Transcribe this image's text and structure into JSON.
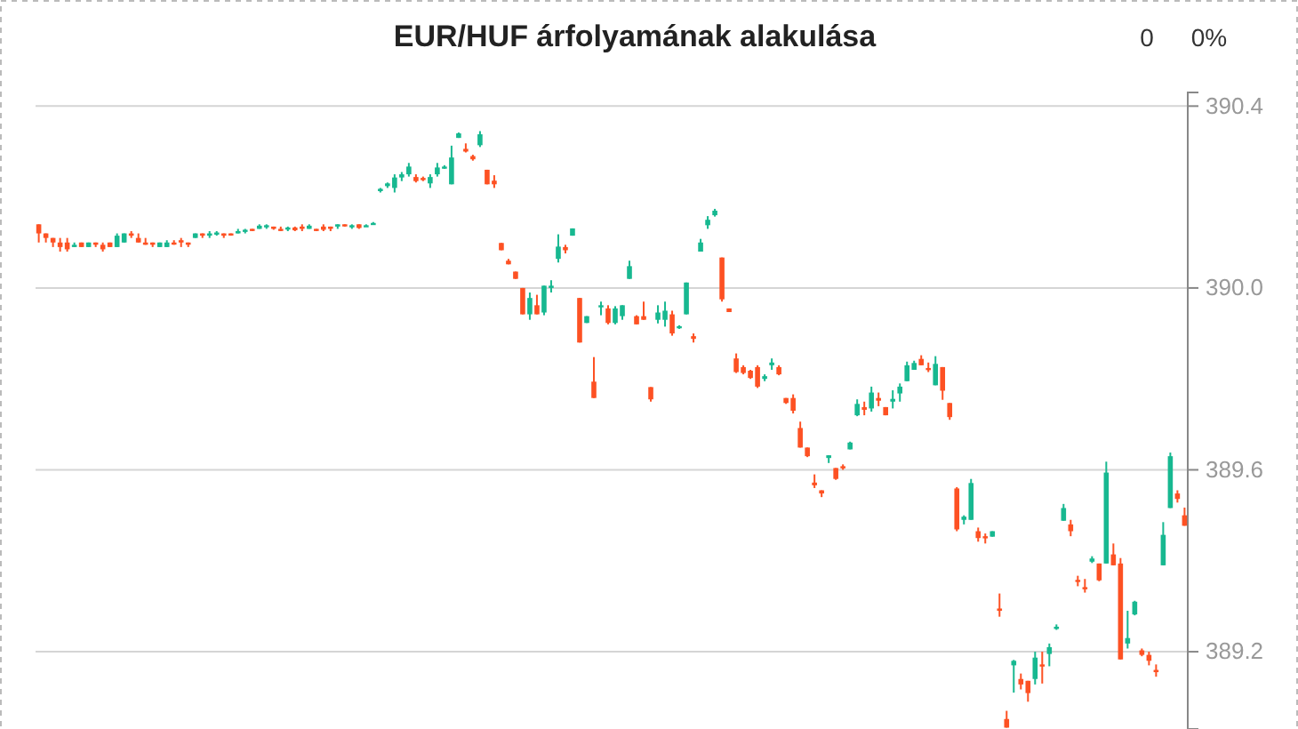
{
  "chart_data": {
    "type": "candlestick",
    "title": "EUR/HUF árfolyamának alakulása",
    "annotations": [
      "0",
      "0%"
    ],
    "categories": [
      null,
      null,
      null,
      null,
      null,
      null,
      null,
      null,
      null,
      null,
      null,
      null,
      null,
      null,
      null,
      null,
      null,
      null,
      null,
      null,
      null,
      null,
      null,
      null,
      null,
      null,
      null,
      null,
      null,
      null,
      null,
      null,
      null,
      null,
      null,
      null,
      null,
      null,
      null,
      null,
      null,
      null,
      null,
      null,
      null,
      null,
      null,
      null,
      null,
      null,
      null,
      null,
      null,
      null,
      null,
      null,
      null,
      null,
      null,
      null,
      null,
      null,
      null,
      null,
      null,
      null,
      null,
      null,
      null,
      null,
      null,
      null,
      null,
      null,
      null,
      null,
      null,
      null,
      null,
      null,
      null,
      null,
      null,
      null,
      null,
      null,
      null,
      null,
      null,
      null,
      null,
      null,
      null,
      null,
      null,
      null,
      null,
      null,
      null,
      null,
      null,
      null,
      null,
      null,
      null,
      null,
      null,
      null,
      null,
      null,
      null,
      null,
      null,
      null,
      null,
      null,
      null,
      null,
      null,
      null,
      null,
      null,
      null,
      null,
      null,
      null,
      null,
      null,
      null,
      null,
      null,
      null,
      null,
      null,
      null,
      null,
      null,
      null,
      null,
      null,
      null,
      null,
      null,
      null,
      null,
      null,
      null,
      null,
      null,
      null,
      null,
      null,
      null,
      null,
      null,
      null,
      null,
      null,
      null,
      null,
      null,
      null
    ],
    "ohlc": [
      [
        390.14,
        390.14,
        390.1,
        390.12
      ],
      [
        390.12,
        390.12,
        390.1,
        390.11
      ],
      [
        390.11,
        390.11,
        390.09,
        390.1
      ],
      [
        390.1,
        390.11,
        390.08,
        390.09
      ],
      [
        390.1,
        390.11,
        390.08,
        390.085
      ],
      [
        390.09,
        390.1,
        390.09,
        390.095
      ],
      [
        390.1,
        390.1,
        390.09,
        390.09
      ],
      [
        390.09,
        390.1,
        390.09,
        390.1
      ],
      [
        390.1,
        390.1,
        390.09,
        390.095
      ],
      [
        390.095,
        390.1,
        390.08,
        390.085
      ],
      [
        390.1,
        390.1,
        390.09,
        390.09
      ],
      [
        390.09,
        390.12,
        390.09,
        390.115
      ],
      [
        390.1,
        390.12,
        390.1,
        390.12
      ],
      [
        390.12,
        390.125,
        390.11,
        390.115
      ],
      [
        390.11,
        390.12,
        390.1,
        390.1
      ],
      [
        390.1,
        390.11,
        390.095,
        390.095
      ],
      [
        390.1,
        390.1,
        390.09,
        390.095
      ],
      [
        390.09,
        390.1,
        390.09,
        390.1
      ],
      [
        390.09,
        390.105,
        390.09,
        390.1
      ],
      [
        390.1,
        390.105,
        390.095,
        390.098
      ],
      [
        390.105,
        390.11,
        390.09,
        390.1
      ],
      [
        390.1,
        390.1,
        390.09,
        390.095
      ],
      [
        390.11,
        390.12,
        390.11,
        390.12
      ],
      [
        390.12,
        390.12,
        390.11,
        390.115
      ],
      [
        390.115,
        390.125,
        390.11,
        390.12
      ],
      [
        390.118,
        390.125,
        390.115,
        390.122
      ],
      [
        390.12,
        390.12,
        390.11,
        390.115
      ],
      [
        390.12,
        390.12,
        390.115,
        390.117
      ],
      [
        390.12,
        390.13,
        390.12,
        390.125
      ],
      [
        390.125,
        390.13,
        390.12,
        390.128
      ],
      [
        390.13,
        390.13,
        390.125,
        390.127
      ],
      [
        390.13,
        390.14,
        390.13,
        390.137
      ],
      [
        390.135,
        390.14,
        390.13,
        390.138
      ],
      [
        390.135,
        390.135,
        390.128,
        390.13
      ],
      [
        390.13,
        390.135,
        390.125,
        390.127
      ],
      [
        390.13,
        390.135,
        390.125,
        390.133
      ],
      [
        390.133,
        390.135,
        390.125,
        390.127
      ],
      [
        390.135,
        390.14,
        390.125,
        390.13
      ],
      [
        390.13,
        390.14,
        390.13,
        390.137
      ],
      [
        390.13,
        390.13,
        390.125,
        390.127
      ],
      [
        390.135,
        390.14,
        390.125,
        390.128
      ],
      [
        390.135,
        390.135,
        390.125,
        390.13
      ],
      [
        390.135,
        390.14,
        390.13,
        390.14
      ],
      [
        390.14,
        390.14,
        390.135,
        390.137
      ],
      [
        390.135,
        390.14,
        390.13,
        390.138
      ],
      [
        390.14,
        390.14,
        390.13,
        390.132
      ],
      [
        390.135,
        390.14,
        390.135,
        390.138
      ],
      [
        390.14,
        390.145,
        390.14,
        390.143
      ],
      [
        390.213,
        390.22,
        390.21,
        390.218
      ],
      [
        390.224,
        390.232,
        390.22,
        390.23
      ],
      [
        390.22,
        390.25,
        390.21,
        390.243
      ],
      [
        390.243,
        390.255,
        390.235,
        390.25
      ],
      [
        390.25,
        390.275,
        390.245,
        390.267
      ],
      [
        390.244,
        390.25,
        390.232,
        390.235
      ],
      [
        390.242,
        390.245,
        390.235,
        390.239
      ],
      [
        390.23,
        390.25,
        390.22,
        390.244
      ],
      [
        390.25,
        390.275,
        390.245,
        390.265
      ],
      [
        390.265,
        390.27,
        390.262,
        390.267
      ],
      [
        390.228,
        390.313,
        390.228,
        390.287
      ],
      [
        390.33,
        390.342,
        390.33,
        390.34
      ],
      [
        390.306,
        390.318,
        390.298,
        390.3
      ],
      [
        390.29,
        390.293,
        390.28,
        390.283
      ],
      [
        390.314,
        390.345,
        390.31,
        390.338
      ],
      [
        390.26,
        390.26,
        390.228,
        390.228
      ],
      [
        390.236,
        390.248,
        390.22,
        390.228
      ],
      [
        390.099,
        390.099,
        390.083,
        390.083
      ],
      [
        390.06,
        390.064,
        390.052,
        390.052
      ],
      [
        390.036,
        390.036,
        390.02,
        390.02
      ],
      [
        390.0,
        390.0,
        389.942,
        389.942
      ],
      [
        389.942,
        389.99,
        389.93,
        389.978
      ],
      [
        389.962,
        389.985,
        389.942,
        389.942
      ],
      [
        389.946,
        390.005,
        389.94,
        390.005
      ],
      [
        390.0,
        390.017,
        389.99,
        390.005
      ],
      [
        390.064,
        390.118,
        390.056,
        390.091
      ],
      [
        390.09,
        390.095,
        390.076,
        390.083
      ],
      [
        390.115,
        390.131,
        390.115,
        390.131
      ],
      [
        389.978,
        389.978,
        389.88,
        389.88
      ],
      [
        389.923,
        389.938,
        389.923,
        389.938
      ],
      [
        389.794,
        389.848,
        389.758,
        389.758
      ],
      [
        389.958,
        389.97,
        389.94,
        389.962
      ],
      [
        389.955,
        389.962,
        389.92,
        389.923
      ],
      [
        389.923,
        389.96,
        389.92,
        389.955
      ],
      [
        389.938,
        389.962,
        389.93,
        389.962
      ],
      [
        390.02,
        390.06,
        390.02,
        390.048
      ],
      [
        389.938,
        389.94,
        389.92,
        389.92
      ],
      [
        389.938,
        389.97,
        389.93,
        389.93
      ],
      [
        389.782,
        389.782,
        389.75,
        389.755
      ],
      [
        389.93,
        389.962,
        389.922,
        389.946
      ],
      [
        389.93,
        389.97,
        389.915,
        389.95
      ],
      [
        389.942,
        389.95,
        389.895,
        389.9
      ],
      [
        389.912,
        389.918,
        389.91,
        389.916
      ],
      [
        389.942,
        390.012,
        389.942,
        390.012
      ],
      [
        389.894,
        389.9,
        389.88,
        389.888
      ],
      [
        390.08,
        390.108,
        390.08,
        390.1
      ],
      [
        390.138,
        390.158,
        390.13,
        390.15
      ],
      [
        390.16,
        390.174,
        390.157,
        390.17
      ],
      [
        390.067,
        390.067,
        389.97,
        389.975
      ],
      [
        389.955,
        389.955,
        389.947,
        389.947
      ],
      [
        389.845,
        389.856,
        389.813,
        389.815
      ],
      [
        389.826,
        389.83,
        389.81,
        389.813
      ],
      [
        389.818,
        389.82,
        389.8,
        389.802
      ],
      [
        389.826,
        389.83,
        389.78,
        389.783
      ],
      [
        389.8,
        389.81,
        389.795,
        389.806
      ],
      [
        389.83,
        389.845,
        389.82,
        389.836
      ],
      [
        389.826,
        389.83,
        389.808,
        389.81
      ],
      [
        389.758,
        389.758,
        389.745,
        389.747
      ],
      [
        389.758,
        389.766,
        389.724,
        389.73
      ],
      [
        389.692,
        389.706,
        389.649,
        389.649
      ],
      [
        389.649,
        389.649,
        389.628,
        389.63
      ],
      [
        389.572,
        389.59,
        389.56,
        389.566
      ],
      [
        389.555,
        389.555,
        389.54,
        389.548
      ],
      [
        389.626,
        389.632,
        389.615,
        389.632
      ],
      [
        389.604,
        389.604,
        389.578,
        389.58
      ],
      [
        389.608,
        389.612,
        389.6,
        389.605
      ],
      [
        389.645,
        389.662,
        389.645,
        389.66
      ],
      [
        389.72,
        389.755,
        389.718,
        389.745
      ],
      [
        389.738,
        389.75,
        389.72,
        389.732
      ],
      [
        389.735,
        389.783,
        389.728,
        389.77
      ],
      [
        389.758,
        389.77,
        389.74,
        389.752
      ],
      [
        389.738,
        389.738,
        389.72,
        389.72
      ],
      [
        389.75,
        389.775,
        389.735,
        389.756
      ],
      [
        389.768,
        389.79,
        389.75,
        389.783
      ],
      [
        389.795,
        389.838,
        389.795,
        389.83
      ],
      [
        389.82,
        389.84,
        389.82,
        389.835
      ],
      [
        389.844,
        389.852,
        389.83,
        389.83
      ],
      [
        389.824,
        389.836,
        389.815,
        389.82
      ],
      [
        389.786,
        389.85,
        389.786,
        389.833
      ],
      [
        389.826,
        389.826,
        389.754,
        389.774
      ],
      [
        389.747,
        389.747,
        389.71,
        389.716
      ],
      [
        389.559,
        389.562,
        389.465,
        389.469
      ],
      [
        389.49,
        389.5,
        389.48,
        389.497
      ],
      [
        389.49,
        389.58,
        389.49,
        389.571
      ],
      [
        389.465,
        389.473,
        389.442,
        389.45
      ],
      [
        389.454,
        389.46,
        389.438,
        389.45
      ],
      [
        389.453,
        389.465,
        389.453,
        389.465
      ],
      [
        389.295,
        389.328,
        389.277,
        389.29
      ],
      [
        389.052,
        389.07,
        389.033,
        389.033
      ],
      [
        389.17,
        389.182,
        389.11,
        389.18
      ],
      [
        389.14,
        389.152,
        389.117,
        389.128
      ],
      [
        389.136,
        389.136,
        389.09,
        389.109
      ],
      [
        389.14,
        389.2,
        389.128,
        389.187
      ],
      [
        389.172,
        389.2,
        389.13,
        389.168
      ],
      [
        389.195,
        389.218,
        389.168,
        389.21
      ],
      [
        389.25,
        389.26,
        389.248,
        389.255
      ],
      [
        389.488,
        389.525,
        389.488,
        389.516
      ],
      [
        389.48,
        389.49,
        389.454,
        389.465
      ],
      [
        389.358,
        389.367,
        389.344,
        389.355
      ],
      [
        389.342,
        389.36,
        389.33,
        389.338
      ],
      [
        389.398,
        389.41,
        389.395,
        389.405
      ],
      [
        389.394,
        389.394,
        389.355,
        389.357
      ],
      [
        389.394,
        389.618,
        389.394,
        389.594
      ],
      [
        389.414,
        389.438,
        389.39,
        389.39
      ],
      [
        389.394,
        389.406,
        389.183,
        389.183
      ],
      [
        389.218,
        389.29,
        389.207,
        389.23
      ],
      [
        389.282,
        389.312,
        389.28,
        389.31
      ],
      [
        389.203,
        389.207,
        389.19,
        389.193
      ],
      [
        389.193,
        389.2,
        389.17,
        389.18
      ],
      [
        389.16,
        389.172,
        389.145,
        389.155
      ],
      [
        389.39,
        389.485,
        389.39,
        389.457
      ],
      [
        389.516,
        389.638,
        389.516,
        389.63
      ],
      [
        389.548,
        389.555,
        389.528,
        389.536
      ],
      [
        389.5,
        389.517,
        389.477,
        389.477
      ]
    ],
    "colors": [
      "#fd5123",
      "#fd5123",
      "#fd5123",
      "#fd5123",
      "#fd5123",
      "#17b890",
      "#fd5123",
      "#17b890",
      "#fd5123",
      "#fd5123",
      "#fd5123",
      "#17b890",
      "#17b890",
      "#fd5123",
      "#fd5123",
      "#fd5123",
      "#fd5123",
      "#17b890",
      "#17b890",
      "#fd5123",
      "#fd5123",
      "#fd5123",
      "#17b890",
      "#fd5123",
      "#17b890",
      "#17b890",
      "#fd5123",
      "#fd5123",
      "#17b890",
      "#17b890",
      "#fd5123",
      "#17b890",
      "#17b890",
      "#fd5123",
      "#fd5123",
      "#17b890",
      "#fd5123",
      "#fd5123",
      "#17b890",
      "#fd5123",
      "#fd5123",
      "#fd5123",
      "#17b890",
      "#fd5123",
      "#17b890",
      "#fd5123",
      "#17b890",
      "#17b890",
      "#17b890",
      "#17b890",
      "#17b890",
      "#17b890",
      "#17b890",
      "#fd5123",
      "#fd5123",
      "#17b890",
      "#17b890",
      "#17b890",
      "#17b890",
      "#17b890",
      "#fd5123",
      "#fd5123",
      "#17b890",
      "#fd5123",
      "#fd5123",
      "#fd5123",
      "#fd5123",
      "#fd5123",
      "#fd5123",
      "#17b890",
      "#fd5123",
      "#17b890",
      "#17b890",
      "#17b890",
      "#fd5123",
      "#17b890",
      "#fd5123",
      "#17b890",
      "#fd5123",
      "#17b890",
      "#fd5123",
      "#17b890",
      "#17b890",
      "#17b890",
      "#fd5123",
      "#fd5123",
      "#fd5123",
      "#17b890",
      "#17b890",
      "#fd5123",
      "#17b890",
      "#17b890",
      "#fd5123",
      "#17b890",
      "#17b890",
      "#17b890",
      "#fd5123",
      "#fd5123",
      "#fd5123",
      "#fd5123",
      "#fd5123",
      "#fd5123",
      "#17b890",
      "#17b890",
      "#fd5123",
      "#fd5123",
      "#fd5123",
      "#fd5123",
      "#fd5123",
      "#fd5123",
      "#fd5123",
      "#17b890",
      "#fd5123",
      "#fd5123",
      "#17b890",
      "#17b890",
      "#fd5123",
      "#17b890",
      "#fd5123",
      "#fd5123",
      "#17b890",
      "#17b890",
      "#17b890",
      "#17b890",
      "#fd5123",
      "#fd5123",
      "#17b890",
      "#fd5123",
      "#fd5123",
      "#fd5123",
      "#17b890",
      "#17b890",
      "#fd5123",
      "#fd5123",
      "#17b890",
      "#fd5123",
      "#fd5123",
      "#17b890",
      "#fd5123",
      "#fd5123",
      "#17b890",
      "#fd5123",
      "#17b890",
      "#17b890",
      "#17b890",
      "#fd5123",
      "#fd5123",
      "#fd5123",
      "#17b890",
      "#fd5123",
      "#17b890",
      "#fd5123",
      "#fd5123",
      "#17b890",
      "#17b890",
      "#fd5123",
      "#fd5123",
      "#fd5123",
      "#17b890",
      "#17b890",
      "#fd5123",
      "#fd5123"
    ],
    "ylim": [
      389.03,
      390.43
    ],
    "yticks": [
      389.2,
      389.6,
      {
        "value": 390,
        "label": "390.0"
      },
      390.4
    ],
    "grid": "y",
    "tick_labels": "y"
  }
}
